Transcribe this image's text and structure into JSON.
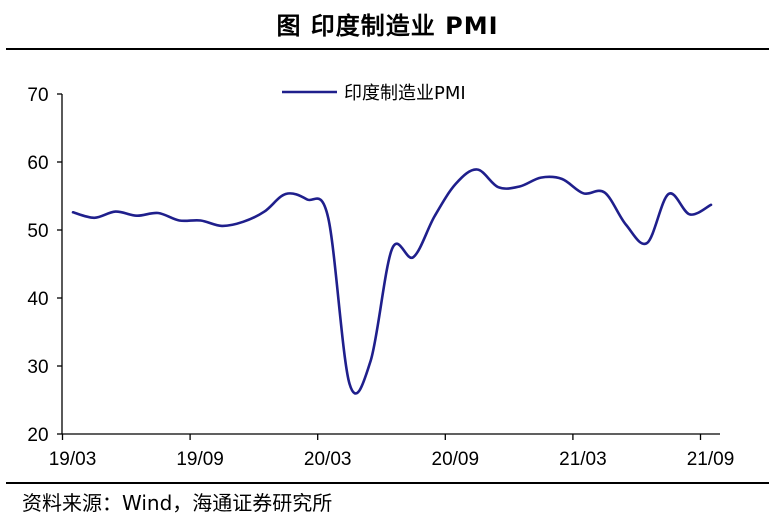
{
  "title": "图  印度制造业 PMI",
  "source": "资料来源：Wind，海通证券研究所",
  "chart_data": {
    "type": "line",
    "title": "印度制造业 PMI",
    "xlabel": "",
    "ylabel": "",
    "ylim": [
      20,
      70
    ],
    "yticks": [
      20,
      30,
      40,
      50,
      60,
      70
    ],
    "x_tick_labels": [
      "19/03",
      "19/09",
      "20/03",
      "20/09",
      "21/03",
      "21/09"
    ],
    "x_tick_indices": [
      0,
      6,
      12,
      18,
      24,
      30
    ],
    "legend_position": "top-center",
    "series": [
      {
        "name": "印度制造业PMI",
        "color": "#1f1f8c",
        "x": [
          "19/03",
          "19/04",
          "19/05",
          "19/06",
          "19/07",
          "19/08",
          "19/09",
          "19/10",
          "19/11",
          "19/12",
          "20/01",
          "20/02",
          "20/03",
          "20/04",
          "20/05",
          "20/06",
          "20/07",
          "20/08",
          "20/09",
          "20/10",
          "20/11",
          "20/12",
          "21/01",
          "21/02",
          "21/03",
          "21/04",
          "21/05",
          "21/06",
          "21/07",
          "21/08",
          "21/09"
        ],
        "values": [
          52.6,
          51.8,
          52.7,
          52.1,
          52.5,
          51.4,
          51.4,
          50.6,
          51.2,
          52.7,
          55.3,
          54.5,
          51.8,
          27.4,
          30.8,
          47.2,
          46.0,
          52.0,
          56.8,
          58.9,
          56.3,
          56.4,
          57.7,
          57.5,
          55.4,
          55.5,
          50.8,
          48.1,
          55.3,
          52.3,
          53.7
        ]
      }
    ]
  }
}
